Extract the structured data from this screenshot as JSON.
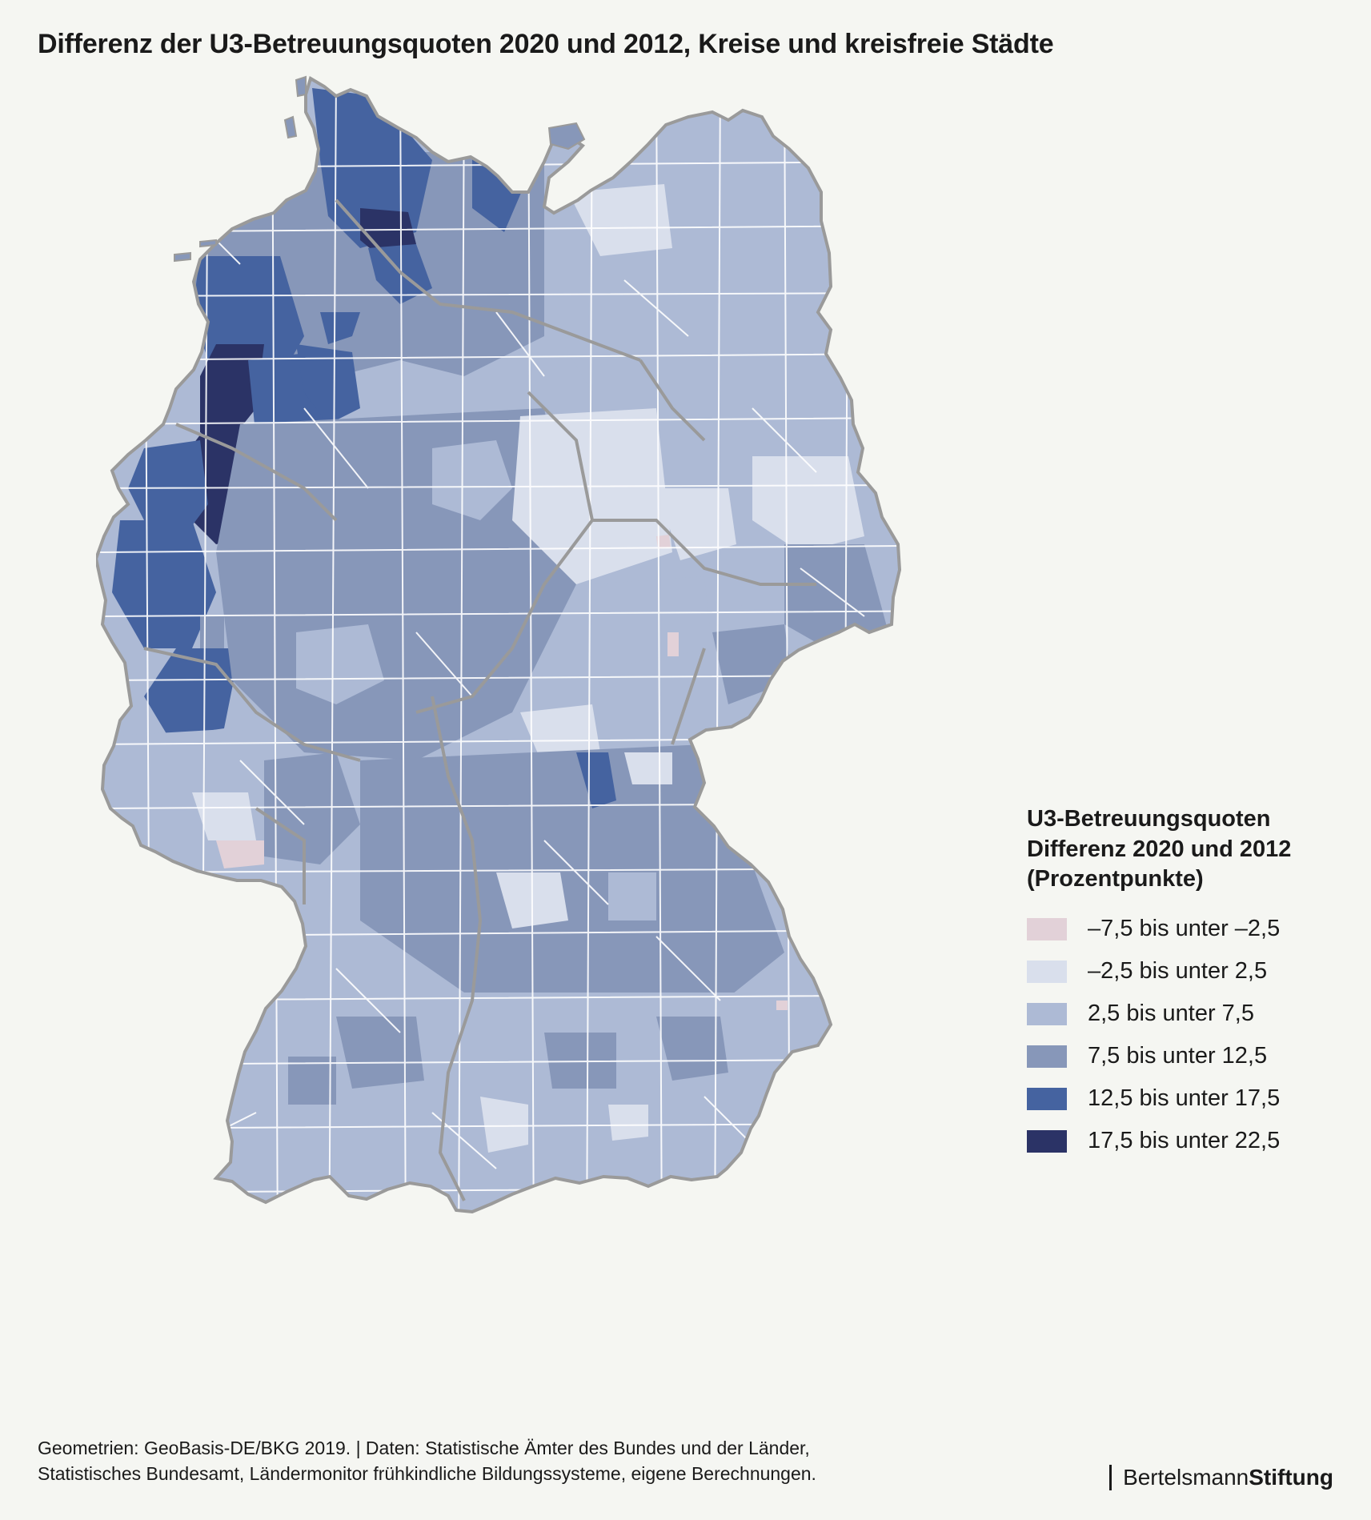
{
  "title": "Differenz der U3-Betreuungsquoten 2020 und 2012, Kreise und kreisfreie Städte",
  "legend": {
    "title_lines": [
      "U3-Betreuungsquoten",
      "Differenz 2020 und 2012",
      "(Prozentpunkte)"
    ],
    "items": [
      {
        "label": "–7,5 bis unter –2,5",
        "color": "#e2d1d8"
      },
      {
        "label": "–2,5 bis unter 2,5",
        "color": "#d9dfec"
      },
      {
        "label": "2,5 bis unter 7,5",
        "color": "#adbad5"
      },
      {
        "label": "7,5 bis unter 12,5",
        "color": "#8797b9"
      },
      {
        "label": "12,5 bis unter 17,5",
        "color": "#4563a0"
      },
      {
        "label": "17,5 bis unter 22,5",
        "color": "#2b3366"
      }
    ]
  },
  "footer": {
    "line1": "Geometrien: GeoBasis-DE/BKG 2019.  |  Daten: Statistische Ämter des Bundes und der Länder,",
    "line2": "Statistisches Bundesamt, Ländermonitor frühkindliche Bildungssysteme, eigene Berechnungen."
  },
  "logo": {
    "part1": "Bertelsmann",
    "part2": "Stiftung"
  },
  "map": {
    "border_color": "#9a9a9a",
    "district_line_color": "#ffffff"
  }
}
